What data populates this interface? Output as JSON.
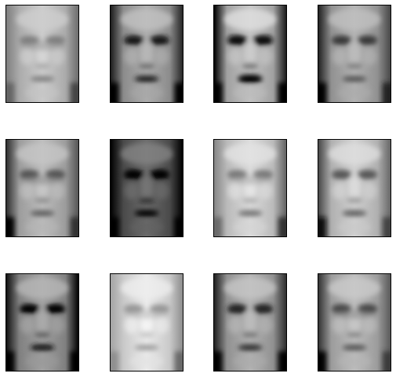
{
  "figure": {
    "rows": 3,
    "cols": 4,
    "frame_color": "#000000",
    "background_color": "#ffffff",
    "panels": [
      {
        "id": "face-1",
        "tone": 0.72,
        "contrast": 0.25,
        "left": 0.18,
        "right": 0.3,
        "mouth": 0.25,
        "ghost": true
      },
      {
        "id": "face-2",
        "tone": 0.6,
        "contrast": 0.75,
        "left": 0.25,
        "right": 0.18,
        "mouth": 0.6,
        "ghost": false
      },
      {
        "id": "face-3",
        "tone": 0.68,
        "contrast": 1.0,
        "left": 0.6,
        "right": 0.2,
        "mouth": 0.95,
        "ghost": false
      },
      {
        "id": "face-4",
        "tone": 0.62,
        "contrast": 0.55,
        "left": 0.4,
        "right": 0.15,
        "mouth": 0.35,
        "ghost": false
      },
      {
        "id": "face-5",
        "tone": 0.66,
        "contrast": 0.45,
        "left": 0.45,
        "right": 0.2,
        "mouth": 0.35,
        "ghost": true
      },
      {
        "id": "face-6",
        "tone": 0.34,
        "contrast": 0.85,
        "left": 0.3,
        "right": 0.3,
        "mouth": 0.55,
        "ghost": false
      },
      {
        "id": "face-7",
        "tone": 0.78,
        "contrast": 0.4,
        "left": 0.12,
        "right": 0.35,
        "mouth": 0.4,
        "ghost": true
      },
      {
        "id": "face-8",
        "tone": 0.74,
        "contrast": 0.55,
        "left": 0.35,
        "right": 0.15,
        "mouth": 0.45,
        "ghost": false
      },
      {
        "id": "face-9",
        "tone": 0.55,
        "contrast": 0.8,
        "left": 0.2,
        "right": 0.3,
        "mouth": 0.6,
        "ghost": false
      },
      {
        "id": "face-10",
        "tone": 0.84,
        "contrast": 0.3,
        "left": 0.1,
        "right": 0.25,
        "mouth": 0.25,
        "ghost": true
      },
      {
        "id": "face-11",
        "tone": 0.62,
        "contrast": 0.7,
        "left": 0.3,
        "right": 0.2,
        "mouth": 0.55,
        "ghost": false
      },
      {
        "id": "face-12",
        "tone": 0.66,
        "contrast": 0.55,
        "left": 0.35,
        "right": 0.1,
        "mouth": 0.4,
        "ghost": true
      }
    ]
  }
}
